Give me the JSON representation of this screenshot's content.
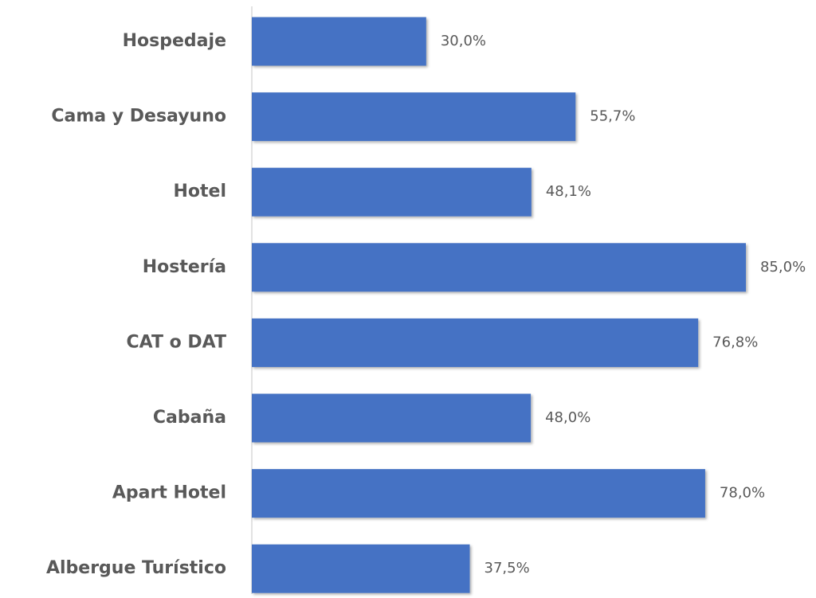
{
  "chart_data": {
    "type": "bar",
    "orientation": "horizontal",
    "categories": [
      "Hospedaje",
      "Cama y Desayuno",
      "Hotel",
      "Hostería",
      "CAT o DAT",
      "Cabaña",
      "Apart Hotel",
      "Albergue Turístico"
    ],
    "values": [
      30.0,
      55.7,
      48.1,
      85.0,
      76.8,
      48.0,
      78.0,
      37.5
    ],
    "value_labels": [
      "30,0%",
      "55,7%",
      "48,1%",
      "85,0%",
      "76,8%",
      "48,0%",
      "78,0%",
      "37,5%"
    ],
    "color": "#4472c4"
  }
}
